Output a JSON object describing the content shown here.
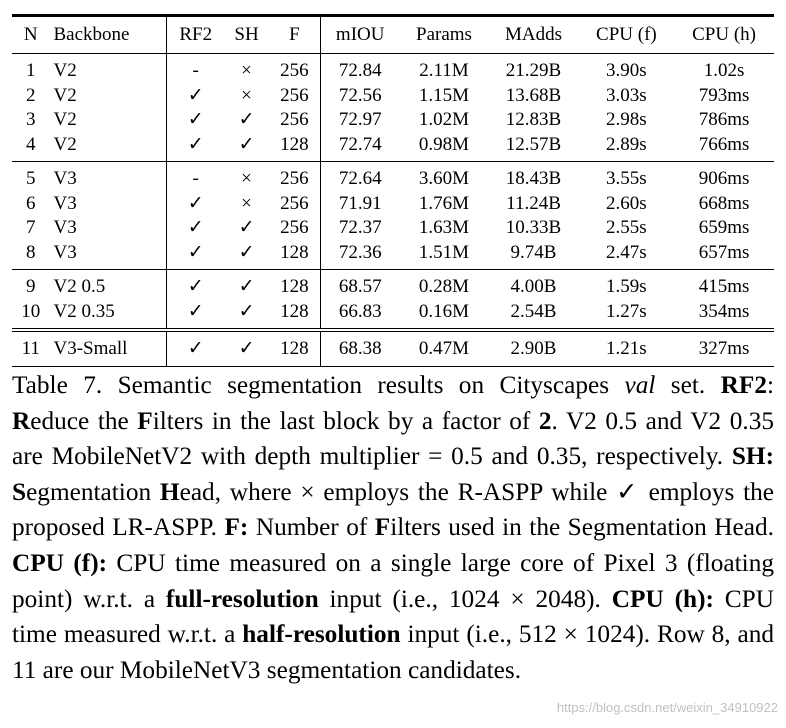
{
  "table": {
    "header": [
      "N",
      "Backbone",
      "RF2",
      "SH",
      "F",
      "mIOU",
      "Params",
      "MAdds",
      "CPU (f)",
      "CPU (h)"
    ],
    "groups": [
      [
        [
          "1",
          "V2",
          "-",
          "×",
          "256",
          "72.84",
          "2.11M",
          "21.29B",
          "3.90s",
          "1.02s"
        ],
        [
          "2",
          "V2",
          "✓",
          "×",
          "256",
          "72.56",
          "1.15M",
          "13.68B",
          "3.03s",
          "793ms"
        ],
        [
          "3",
          "V2",
          "✓",
          "✓",
          "256",
          "72.97",
          "1.02M",
          "12.83B",
          "2.98s",
          "786ms"
        ],
        [
          "4",
          "V2",
          "✓",
          "✓",
          "128",
          "72.74",
          "0.98M",
          "12.57B",
          "2.89s",
          "766ms"
        ]
      ],
      [
        [
          "5",
          "V3",
          "-",
          "×",
          "256",
          "72.64",
          "3.60M",
          "18.43B",
          "3.55s",
          "906ms"
        ],
        [
          "6",
          "V3",
          "✓",
          "×",
          "256",
          "71.91",
          "1.76M",
          "11.24B",
          "2.60s",
          "668ms"
        ],
        [
          "7",
          "V3",
          "✓",
          "✓",
          "256",
          "72.37",
          "1.63M",
          "10.33B",
          "2.55s",
          "659ms"
        ],
        [
          "8",
          "V3",
          "✓",
          "✓",
          "128",
          "72.36",
          "1.51M",
          "9.74B",
          "2.47s",
          "657ms"
        ]
      ],
      [
        [
          "9",
          "V2 0.5",
          "✓",
          "✓",
          "128",
          "68.57",
          "0.28M",
          "4.00B",
          "1.59s",
          "415ms"
        ],
        [
          "10",
          "V2 0.35",
          "✓",
          "✓",
          "128",
          "66.83",
          "0.16M",
          "2.54B",
          "1.27s",
          "354ms"
        ]
      ],
      [
        [
          "11",
          "V3-Small",
          "✓",
          "✓",
          "128",
          "68.38",
          "0.47M",
          "2.90B",
          "1.21s",
          "327ms"
        ]
      ]
    ]
  },
  "caption": [
    "Table 7. Semantic segmentation results on Cityscapes ",
    "val",
    " set. ",
    "RF2",
    ": ",
    "R",
    "educe the ",
    "F",
    "ilters in the last block by a factor of ",
    "2",
    ". V2 0.5 and V2 0.35 are MobileNetV2 with depth multiplier = 0.5 and 0.35, respectively. ",
    "SH: S",
    "egmentation ",
    "H",
    "ead, where × employs the R-ASPP while ✓ employs the proposed LR-ASPP. ",
    "F:",
    " Number of ",
    "F",
    "ilters used in the Segmentation Head. ",
    "CPU (f):",
    " CPU time measured on a single large core of Pixel 3 (floating point) w.r.t. a ",
    "full-resolution",
    " input (i.e., 1024 × 2048). ",
    "CPU (h):",
    " CPU time measured w.r.t. a ",
    "half-resolution",
    " input (i.e., 512 × 1024). Row 8, and 11 are our MobileNetV3 segmentation candidates."
  ],
  "watermark": "https://blog.csdn.net/weixin_34910922"
}
